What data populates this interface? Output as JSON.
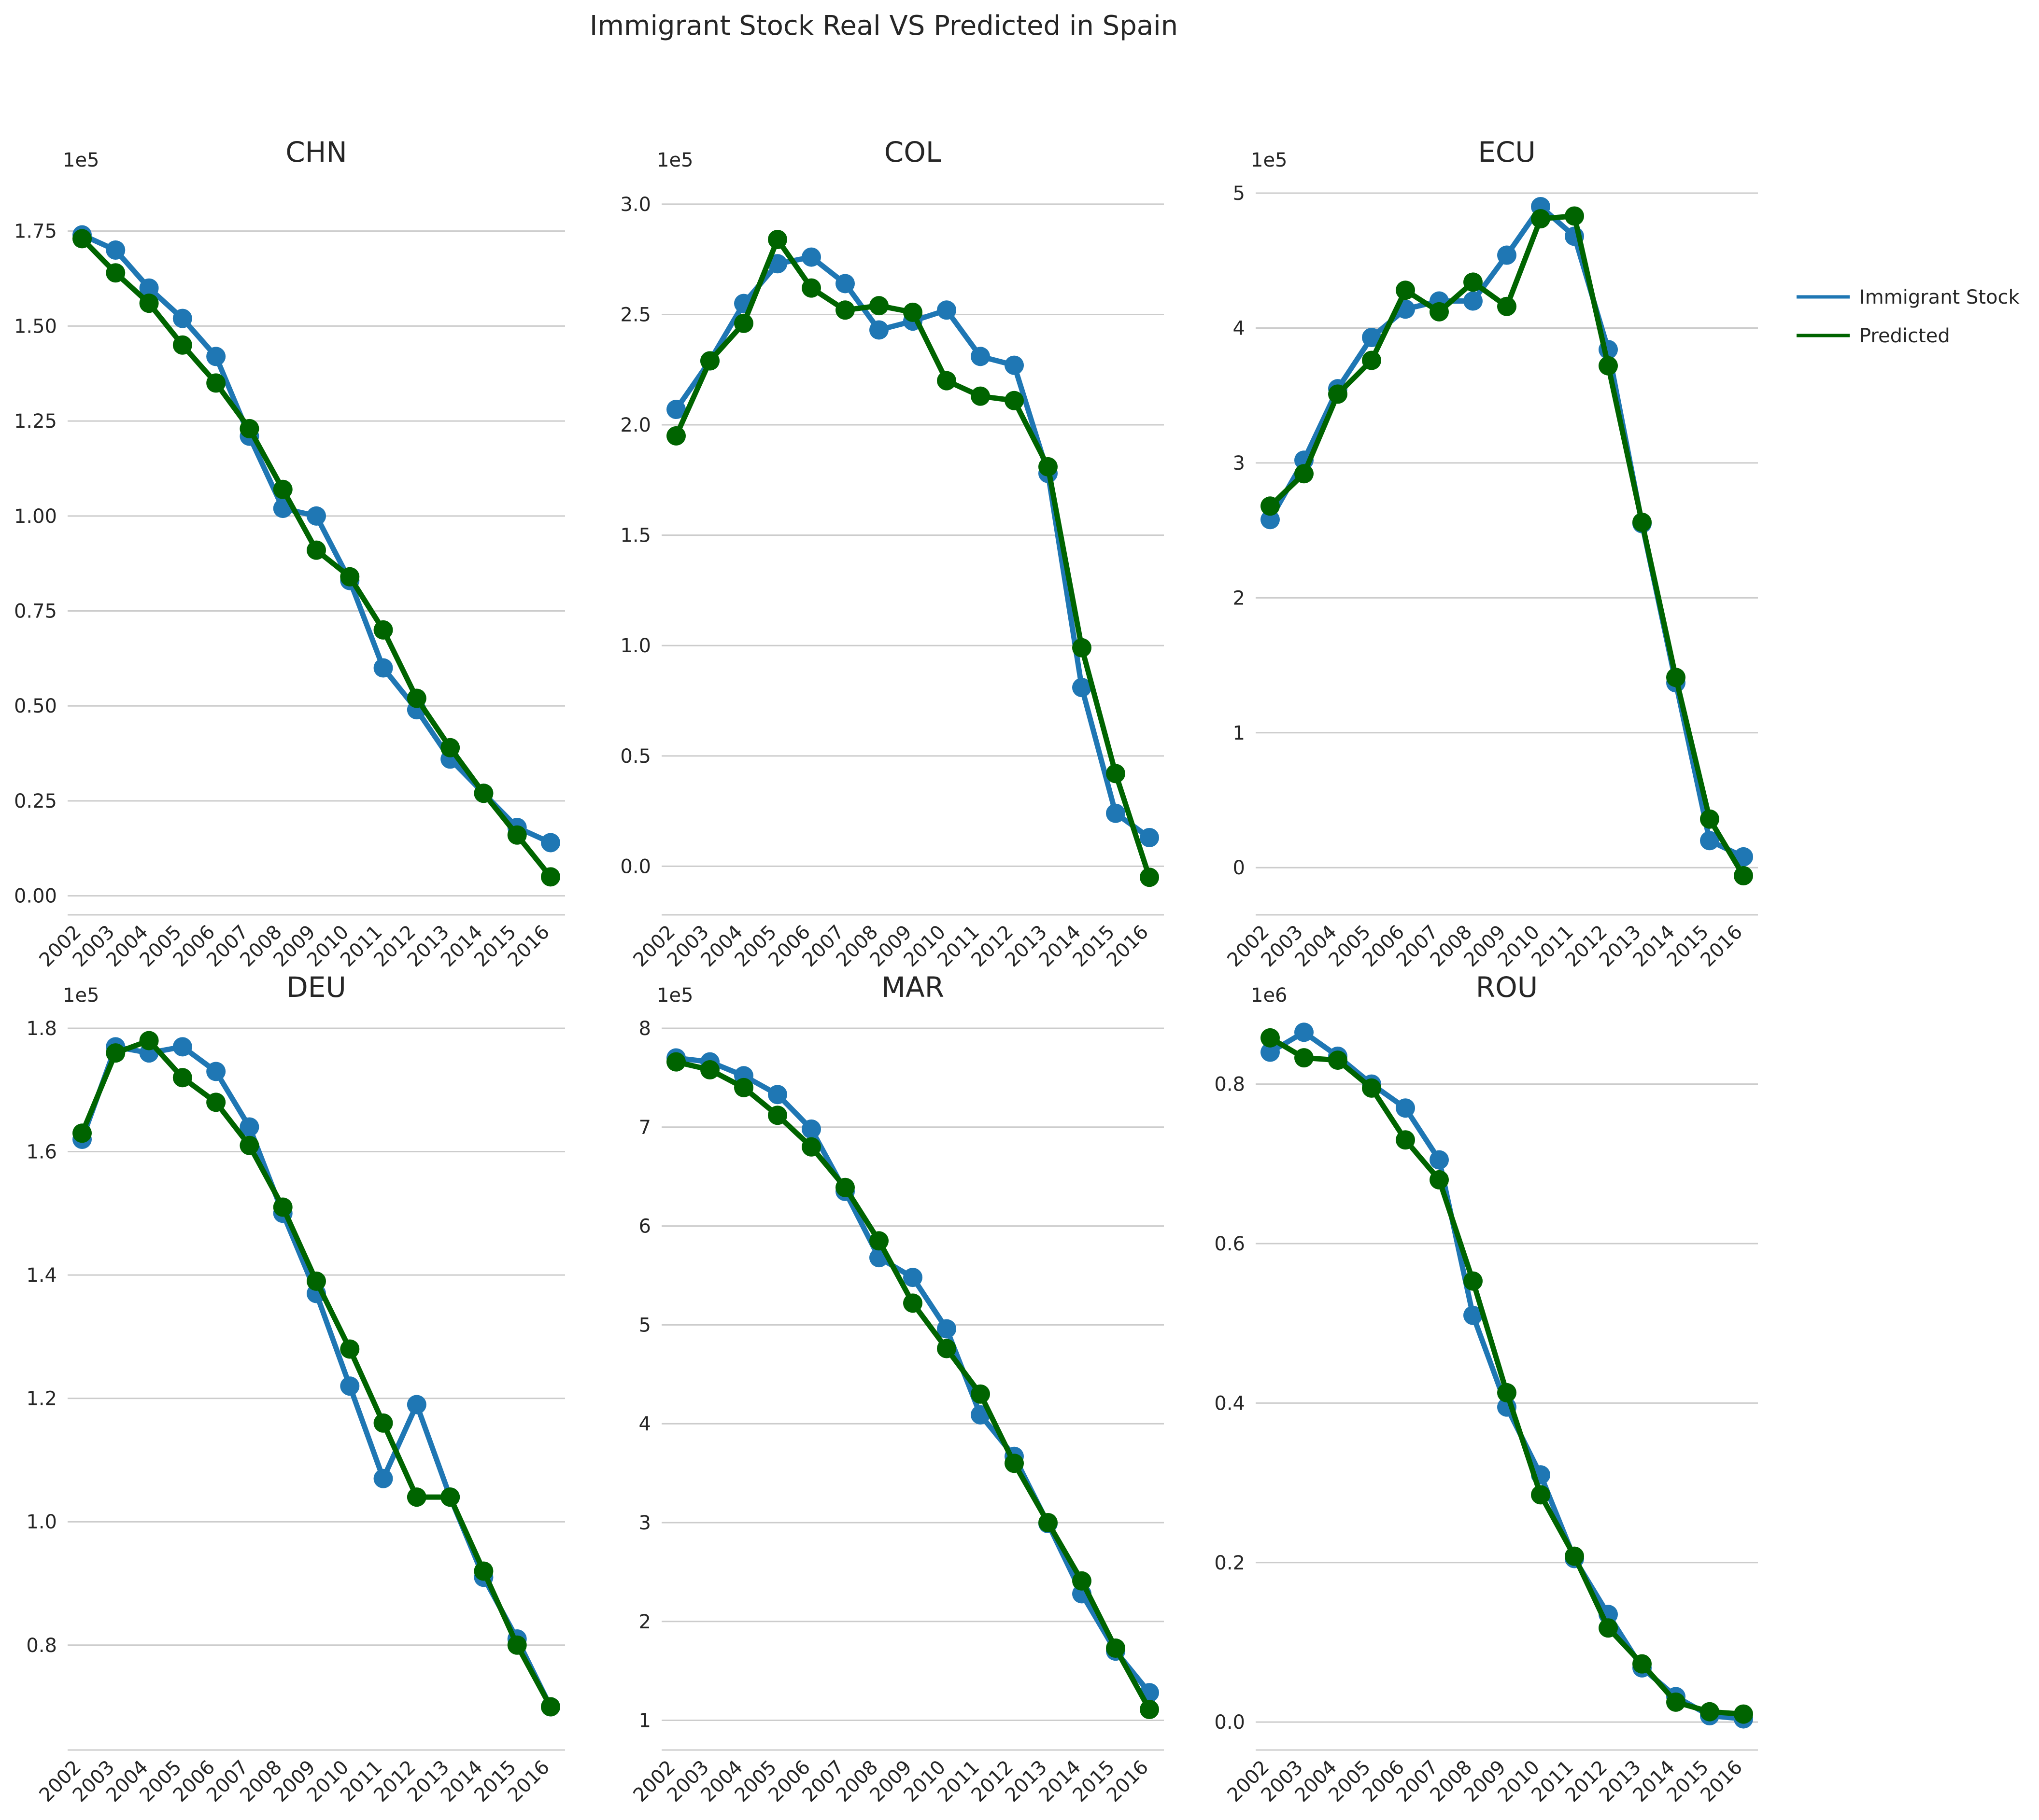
{
  "chart_data": {
    "type": "line",
    "title": "Immigrant Stock Real VS Predicted in Spain",
    "legend": {
      "placement": "right",
      "entries": [
        {
          "name": "Immigrant Stock",
          "color": "#1f77b4"
        },
        {
          "name": "Predicted",
          "color": "#006400"
        }
      ]
    },
    "x": [
      "2002",
      "2003",
      "2004",
      "2005",
      "2006",
      "2007",
      "2008",
      "2009",
      "2010",
      "2011",
      "2012",
      "2013",
      "2014",
      "2015",
      "2016"
    ],
    "grid": "y",
    "subplots": [
      {
        "title": "CHN",
        "multiplier_label": "1e5",
        "ylim": [
          -0.05,
          1.85
        ],
        "yticks": [
          0.0,
          0.25,
          0.5,
          0.75,
          1.0,
          1.25,
          1.5,
          1.75
        ],
        "yticklabels": [
          "0.00",
          "0.25",
          "0.50",
          "0.75",
          "1.00",
          "1.25",
          "1.50",
          "1.75"
        ],
        "series": [
          {
            "name": "Immigrant Stock",
            "values": [
              1.74,
              1.7,
              1.6,
              1.52,
              1.42,
              1.21,
              1.02,
              1.0,
              0.83,
              0.6,
              0.49,
              0.36,
              0.27,
              0.18,
              0.14
            ]
          },
          {
            "name": "Predicted",
            "values": [
              1.73,
              1.64,
              1.56,
              1.45,
              1.35,
              1.23,
              1.07,
              0.91,
              0.84,
              0.7,
              0.52,
              0.39,
              0.27,
              0.16,
              0.05
            ]
          }
        ]
      },
      {
        "title": "COL",
        "multiplier_label": "1e5",
        "ylim": [
          -0.22,
          3.05
        ],
        "yticks": [
          0.0,
          0.5,
          1.0,
          1.5,
          2.0,
          2.5,
          3.0
        ],
        "yticklabels": [
          "0.0",
          "0.5",
          "1.0",
          "1.5",
          "2.0",
          "2.5",
          "3.0"
        ],
        "series": [
          {
            "name": "Immigrant Stock",
            "values": [
              2.07,
              2.29,
              2.55,
              2.73,
              2.76,
              2.64,
              2.43,
              2.47,
              2.52,
              2.31,
              2.27,
              1.78,
              0.81,
              0.24,
              0.13
            ]
          },
          {
            "name": "Predicted",
            "values": [
              1.95,
              2.29,
              2.46,
              2.84,
              2.62,
              2.52,
              2.54,
              2.51,
              2.2,
              2.13,
              2.11,
              1.81,
              0.99,
              0.42,
              -0.05
            ]
          }
        ]
      },
      {
        "title": "ECU",
        "multiplier_label": "1e5",
        "ylim": [
          -0.35,
          5.0
        ],
        "yticks": [
          0,
          1,
          2,
          3,
          4,
          5
        ],
        "yticklabels": [
          "0",
          "1",
          "2",
          "3",
          "4",
          "5"
        ],
        "series": [
          {
            "name": "Immigrant Stock",
            "values": [
              2.58,
              3.02,
              3.55,
              3.93,
              4.14,
              4.2,
              4.2,
              4.54,
              4.9,
              4.68,
              3.84,
              2.55,
              1.37,
              0.2,
              0.08
            ]
          },
          {
            "name": "Predicted",
            "values": [
              2.68,
              2.92,
              3.51,
              3.76,
              4.28,
              4.12,
              4.34,
              4.16,
              4.81,
              4.83,
              3.72,
              2.56,
              1.41,
              0.36,
              -0.06
            ]
          }
        ]
      },
      {
        "title": "DEU",
        "multiplier_label": "1e5",
        "ylim": [
          0.63,
          1.8
        ],
        "yticks": [
          0.8,
          1.0,
          1.2,
          1.4,
          1.6,
          1.8
        ],
        "yticklabels": [
          "0.8",
          "1.0",
          "1.2",
          "1.4",
          "1.6",
          "1.8"
        ],
        "series": [
          {
            "name": "Immigrant Stock",
            "values": [
              1.62,
              1.77,
              1.76,
              1.77,
              1.73,
              1.64,
              1.5,
              1.37,
              1.22,
              1.07,
              1.19,
              1.04,
              0.91,
              0.81,
              0.7
            ]
          },
          {
            "name": "Predicted",
            "values": [
              1.63,
              1.76,
              1.78,
              1.72,
              1.68,
              1.61,
              1.51,
              1.39,
              1.28,
              1.16,
              1.04,
              1.04,
              0.92,
              0.8,
              0.7
            ]
          }
        ]
      },
      {
        "title": "MAR",
        "multiplier_label": "1e5",
        "ylim": [
          0.7,
          8.0
        ],
        "yticks": [
          1,
          2,
          3,
          4,
          5,
          6,
          7,
          8
        ],
        "yticklabels": [
          "1",
          "2",
          "3",
          "4",
          "5",
          "6",
          "7",
          "8"
        ],
        "series": [
          {
            "name": "Immigrant Stock",
            "values": [
              7.7,
              7.66,
              7.52,
              7.33,
              6.98,
              6.35,
              5.68,
              5.48,
              4.96,
              4.09,
              3.67,
              2.99,
              2.28,
              1.7,
              1.28
            ]
          },
          {
            "name": "Predicted",
            "values": [
              7.66,
              7.58,
              7.4,
              7.12,
              6.8,
              6.39,
              5.85,
              5.22,
              4.76,
              4.3,
              3.6,
              3.0,
              2.41,
              1.73,
              1.11
            ]
          }
        ]
      },
      {
        "title": "ROU",
        "multiplier_label": "1e6",
        "ylim": [
          -0.035,
          0.87
        ],
        "yticks": [
          0.0,
          0.2,
          0.4,
          0.6,
          0.8
        ],
        "yticklabels": [
          "0.0",
          "0.2",
          "0.4",
          "0.6",
          "0.8"
        ],
        "series": [
          {
            "name": "Immigrant Stock",
            "values": [
              0.84,
              0.865,
              0.835,
              0.8,
              0.77,
              0.705,
              0.51,
              0.395,
              0.31,
              0.205,
              0.135,
              0.068,
              0.032,
              0.008,
              0.004
            ]
          },
          {
            "name": "Predicted",
            "values": [
              0.858,
              0.833,
              0.83,
              0.795,
              0.73,
              0.68,
              0.553,
              0.413,
              0.285,
              0.208,
              0.118,
              0.073,
              0.025,
              0.013,
              0.01
            ]
          }
        ]
      }
    ]
  }
}
